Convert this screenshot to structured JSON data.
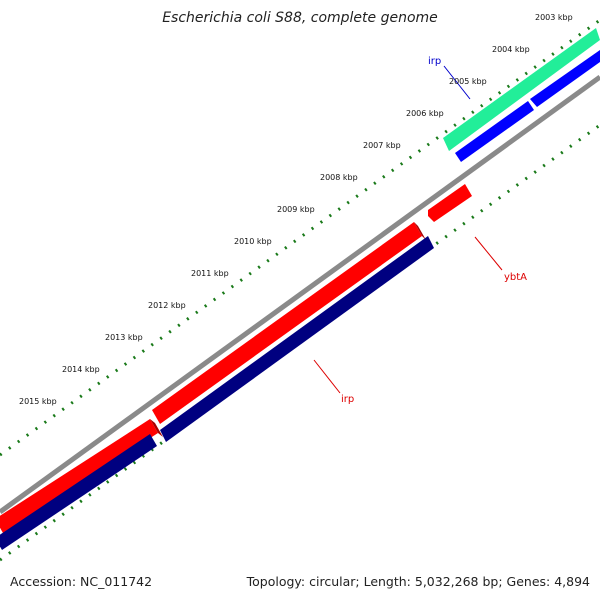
{
  "title": "Escherichia coli S88, complete genome",
  "footer": {
    "accession": "Accession: NC_011742",
    "summary": "Topology: circular; Length: 5,032,268 bp; Genes: 4,894"
  },
  "chart_data": {
    "type": "genome-map",
    "ticks": [
      "2003 kbp",
      "2004 kbp",
      "2005 kbp",
      "2006 kbp",
      "2007 kbp",
      "2008 kbp",
      "2009 kbp",
      "2010 kbp",
      "2011 kbp",
      "2012 kbp",
      "2013 kbp",
      "2014 kbp",
      "2015 kbp"
    ],
    "features": [
      {
        "label": "irp",
        "color": "#0000cc"
      },
      {
        "label": "ybtA",
        "color": "#dd0000"
      },
      {
        "label": "irp",
        "color": "#dd0000"
      }
    ],
    "colors": {
      "backbone": "#8a8a8a",
      "gene_red": "#ff0000",
      "gene_navy": "#000080",
      "gene_blue": "#0000ff",
      "gene_green": "#22ee99",
      "ticks": "#1a7a1a"
    }
  }
}
